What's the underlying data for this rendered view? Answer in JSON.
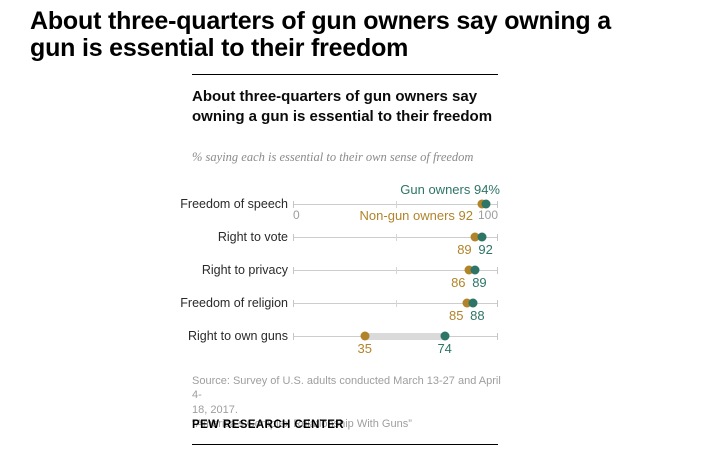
{
  "page": {
    "headline_line1": "About three-quarters of gun owners say owning a",
    "headline_line2": "gun is essential to their freedom"
  },
  "chart": {
    "legend": {
      "gun_owners": "Gun owners 94%",
      "non_gun_owners": "Non-gun owners 92"
    },
    "source_line1": "Source: Survey of U.S. adults conducted March 13-27 and April 4-",
    "source_line2": "18, 2017.",
    "citation": "“America’s Complex Relationship With Guns”",
    "footer": "PEW RESEARCH CENTER"
  },
  "chart_data": {
    "type": "scatter",
    "variant": "dot_plot",
    "title": "About three-quarters of gun owners say owning a gun is essential to their freedom",
    "subtitle": "% saying each is essential to their own sense of freedom",
    "categories": [
      "Freedom of speech",
      "Right to vote",
      "Right to privacy",
      "Freedom of religion",
      "Right to own guns"
    ],
    "series": [
      {
        "name": "Gun owners",
        "color": "#2d7566",
        "values": [
          94,
          92,
          89,
          88,
          74
        ]
      },
      {
        "name": "Non-gun owners",
        "color": "#b1842a",
        "values": [
          92,
          89,
          86,
          85,
          35
        ]
      }
    ],
    "xlim": [
      0,
      100
    ],
    "x_ticks": [
      0,
      50,
      100
    ],
    "x_axis_labels": [
      "0",
      "100"
    ],
    "legend_position": "inline-first-row",
    "grid": false,
    "connector_rows": [
      4
    ]
  }
}
